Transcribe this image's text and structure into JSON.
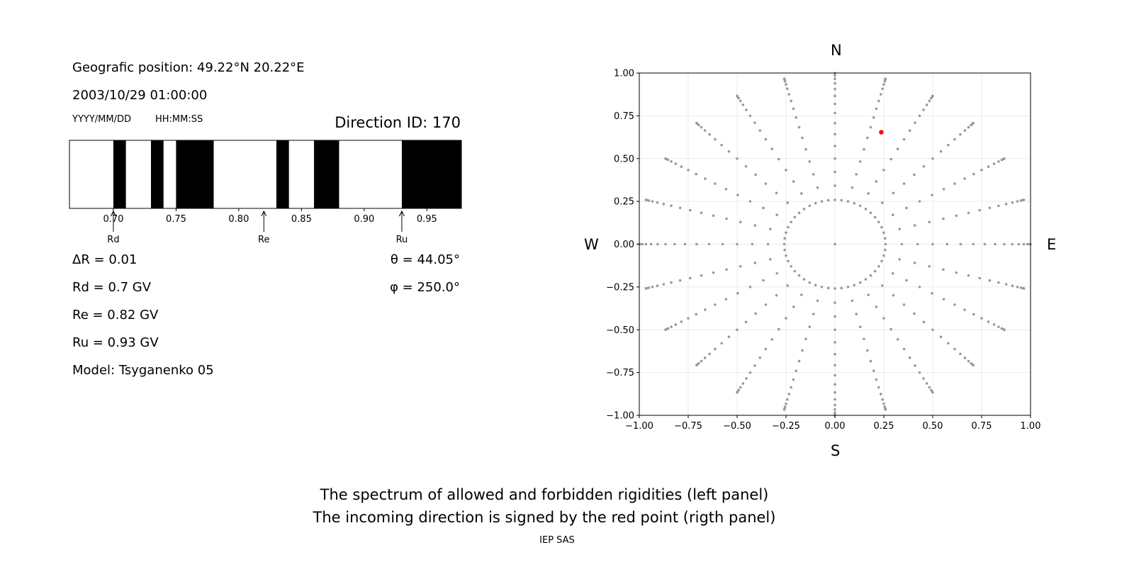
{
  "left_panel": {
    "geo_position": "Geografic position: 49.22°N 20.22°E",
    "datetime": "2003/10/29 01:00:00",
    "date_format": "YYYY/MM/DD",
    "time_format": "HH:MM:SS",
    "direction_id": "Direction ID: 170",
    "delta_r": "ΔR = 0.01",
    "rd": "Rd = 0.7 GV",
    "re": "Re = 0.82 GV",
    "ru": "Ru = 0.93 GV",
    "model": "Model: Tsyganenko 05",
    "theta": "θ = 44.05°",
    "phi": "φ = 250.0°"
  },
  "right_panel": {
    "north": "N",
    "south": "S",
    "west": "W",
    "east": "E"
  },
  "caption": {
    "line1": "The spectrum of allowed and forbidden rigidities (left panel)",
    "line2": "The incoming direction is signed by the red point (rigth panel)",
    "footer": "IEP SAS"
  },
  "chart_data": [
    {
      "type": "bar",
      "description_of_marks": "forbidden (black) and allowed (white) rigidity bands",
      "xlim": [
        0.665,
        0.9775
      ],
      "ticks": [
        0.7,
        0.75,
        0.8,
        0.85,
        0.9,
        0.95
      ],
      "tick_labels": [
        "0.70",
        "0.75",
        "0.80",
        "0.85",
        "0.90",
        "0.95"
      ],
      "forbidden_bands": [
        [
          0.7,
          0.71
        ],
        [
          0.73,
          0.74
        ],
        [
          0.75,
          0.78
        ],
        [
          0.83,
          0.84
        ],
        [
          0.86,
          0.88
        ],
        [
          0.93,
          0.9775
        ]
      ],
      "colors": {
        "forbidden": "#000000",
        "allowed": "#ffffff"
      },
      "markers": [
        {
          "label": "Rd",
          "value": 0.7
        },
        {
          "label": "Re",
          "value": 0.82
        },
        {
          "label": "Ru",
          "value": 0.93
        }
      ]
    },
    {
      "type": "scatter",
      "xlim": [
        -1.0,
        1.0
      ],
      "ylim": [
        -1.0,
        1.0
      ],
      "ticks": [
        -1.0,
        -0.75,
        -0.5,
        -0.25,
        0.0,
        0.25,
        0.5,
        0.75,
        1.0
      ],
      "xtick_labels": [
        "−1.00",
        "−0.75",
        "−0.50",
        "−0.25",
        "0.00",
        "0.25",
        "0.50",
        "0.75",
        "1.00"
      ],
      "ytick_labels": [
        "−1.00",
        "−0.75",
        "−0.50",
        "−0.25",
        "0.00",
        "0.25",
        "0.50",
        "0.75",
        "1.00"
      ],
      "grid": true,
      "grid_points": {
        "color": "#999999",
        "center": [
          0.0,
          0.0
        ],
        "azimuth_step_deg": 15,
        "zenith_step_deg": 5,
        "zenith_max_deg": 90,
        "inner_ring_zenith_deg": 15,
        "inner_ring_azimuth_step_deg": 7.5
      },
      "highlight_point": {
        "x": 0.237,
        "y": 0.654,
        "color": "#ff0000"
      }
    }
  ]
}
